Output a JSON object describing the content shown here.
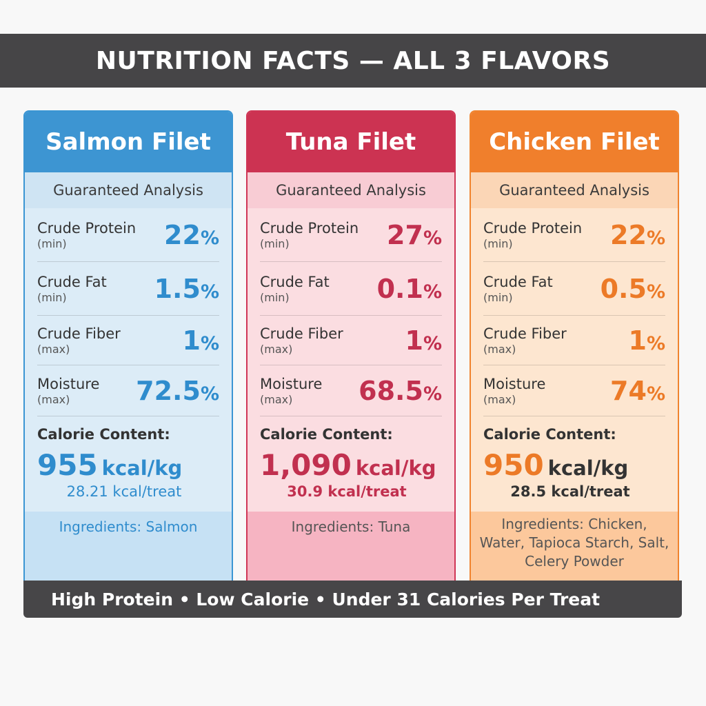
{
  "title": "NUTRITION FACTS — ALL 3 FLAVORS",
  "footer": "High Protein • Low Calorie • Under 31 Calories Per Treat",
  "colors": {
    "salmon_accent": "#3d95d2",
    "tuna_accent": "#cc3352",
    "chicken_accent": "#f07f2c",
    "title_bar": "#464547"
  },
  "cards": [
    {
      "name": "Salmon Filet",
      "analysis_label": "Guaranteed Analysis",
      "rows": [
        {
          "label": "Crude Protein",
          "qualifier": "(min)",
          "value": "22",
          "unit": "%"
        },
        {
          "label": "Crude Fat",
          "qualifier": "(min)",
          "value": "1.5",
          "unit": "%"
        },
        {
          "label": "Crude Fiber",
          "qualifier": "(max)",
          "value": "1",
          "unit": "%"
        },
        {
          "label": "Moisture",
          "qualifier": "(max)",
          "value": "72.5",
          "unit": "%"
        }
      ],
      "calorie_label": "Calorie Content:",
      "calorie_value": "955",
      "calorie_unit": "kcal/kg",
      "calorie_treat": "28.21 kcal/treat",
      "ingredients": "Ingredients: Salmon"
    },
    {
      "name": "Tuna Filet",
      "analysis_label": "Guaranteed Analysis",
      "rows": [
        {
          "label": "Crude Protein",
          "qualifier": "(min)",
          "value": "27",
          "unit": "%"
        },
        {
          "label": "Crude Fat",
          "qualifier": "(min)",
          "value": "0.1",
          "unit": "%"
        },
        {
          "label": "Crude Fiber",
          "qualifier": "(max)",
          "value": "1",
          "unit": "%"
        },
        {
          "label": "Moisture",
          "qualifier": "(max)",
          "value": "68.5",
          "unit": "%"
        }
      ],
      "calorie_label": "Calorie Content:",
      "calorie_value": "1,090",
      "calorie_unit": "kcal/kg",
      "calorie_treat": "30.9 kcal/treat",
      "ingredients": "Ingredients: Tuna"
    },
    {
      "name": "Chicken Filet",
      "analysis_label": "Guaranteed Analysis",
      "rows": [
        {
          "label": "Crude Protein",
          "qualifier": "(min)",
          "value": "22",
          "unit": "%"
        },
        {
          "label": "Crude Fat",
          "qualifier": "(min)",
          "value": "0.5",
          "unit": "%"
        },
        {
          "label": "Crude Fiber",
          "qualifier": "(max)",
          "value": "1",
          "unit": "%"
        },
        {
          "label": "Moisture",
          "qualifier": "(max)",
          "value": "74",
          "unit": "%"
        }
      ],
      "calorie_label": "Calorie Content:",
      "calorie_value": "950",
      "calorie_unit": "kcal/kg",
      "calorie_treat": "28.5 kcal/treat",
      "ingredients": "Ingredients: Chicken, Water, Tapioca Starch, Salt, Celery Powder"
    }
  ]
}
